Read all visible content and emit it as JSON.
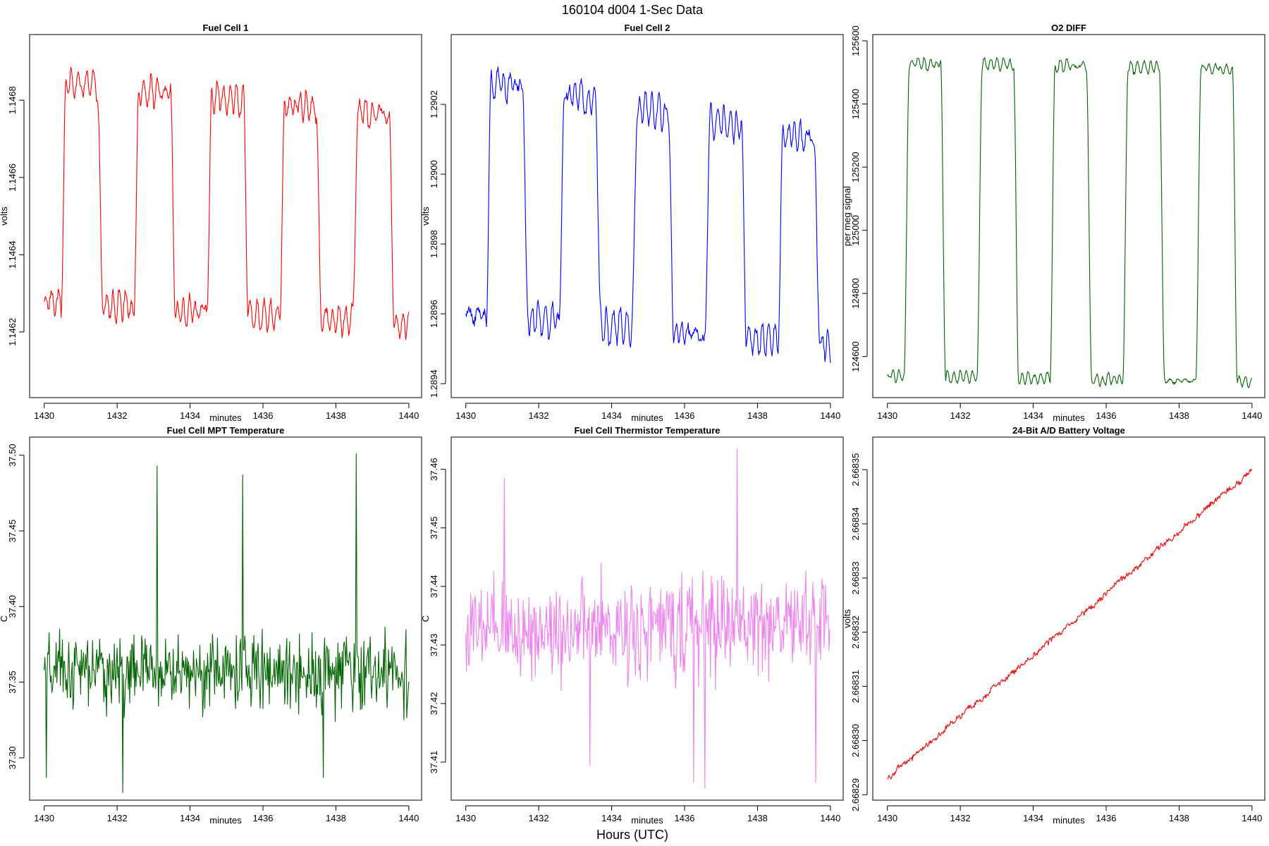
{
  "page": {
    "title": "160104   d004   1-Sec Data",
    "xlabel_global": "Hours (UTC)"
  },
  "chart_data": [
    {
      "id": "fc1",
      "type": "line",
      "title": "Fuel Cell 1",
      "xlabel": "minutes",
      "ylabel": "volts",
      "color": "#ff0000",
      "xlim": [
        1429.6,
        1440.35
      ],
      "ylim": [
        1.14603,
        1.14697
      ],
      "xticks": [
        "1430",
        "1432",
        "1434",
        "1436",
        "1438",
        "1440"
      ],
      "yticks": [
        "1.1462",
        "1.1464",
        "1.1466",
        "1.1468"
      ],
      "series": [
        {
          "kind": "square",
          "x_start": 1430.0,
          "x_end": 1440.0,
          "low": 1.14628,
          "high": 1.14685,
          "low_end": 1.14622,
          "high_end": 1.14676,
          "phase": 0.6,
          "period": 2.0,
          "noise": 2.8e-05
        }
      ]
    },
    {
      "id": "fc2",
      "type": "line",
      "title": "Fuel Cell 2",
      "xlabel": "minutes",
      "ylabel": "volts",
      "color": "#0000ff",
      "xlim": [
        1429.6,
        1440.35
      ],
      "ylim": [
        1.28936,
        1.2904
      ],
      "xticks": [
        "1430",
        "1432",
        "1434",
        "1436",
        "1438",
        "1440"
      ],
      "yticks": [
        "1.2894",
        "1.2896",
        "1.2898",
        "1.2900",
        "1.2902"
      ],
      "series": [
        {
          "kind": "square",
          "x_start": 1430.0,
          "x_end": 1440.0,
          "low": 1.2896,
          "high": 1.29028,
          "low_end": 1.28951,
          "high_end": 1.29009,
          "phase": 0.7,
          "period": 2.0,
          "noise": 3.5e-05
        }
      ]
    },
    {
      "id": "o2",
      "type": "line",
      "title": "O2 DIFF",
      "xlabel": "minutes",
      "ylabel": "per meg signal",
      "color": "#006400",
      "xlim": [
        1429.6,
        1440.35
      ],
      "ylim": [
        124470,
        125620
      ],
      "xticks": [
        "1430",
        "1432",
        "1434",
        "1436",
        "1438",
        "1440"
      ],
      "yticks": [
        "124600",
        "124800",
        "125000",
        "125200",
        "125400",
        "125600"
      ],
      "series": [
        {
          "kind": "square",
          "x_start": 1430.0,
          "x_end": 1440.0,
          "low": 124540,
          "high": 125530,
          "low_end": 124520,
          "high_end": 125510,
          "phase": 0.6,
          "period": 2.0,
          "noise": 14
        }
      ]
    },
    {
      "id": "mpt",
      "type": "line",
      "title": "Fuel Cell MPT Temperature",
      "xlabel": "minutes",
      "ylabel": "C",
      "color": "#006400",
      "xlim": [
        1429.6,
        1440.35
      ],
      "ylim": [
        37.272,
        37.512
      ],
      "xticks": [
        "1430",
        "1432",
        "1434",
        "1436",
        "1438",
        "1440"
      ],
      "yticks": [
        "37.30",
        "37.35",
        "37.40",
        "37.45",
        "37.50"
      ],
      "series": [
        {
          "kind": "noise",
          "x_start": 1430.0,
          "x_end": 1440.0,
          "mean": 37.357,
          "amp": 0.028,
          "slope": 0.0,
          "spikes": [
            [
              1430.05,
              37.287
            ],
            [
              1432.15,
              37.277
            ],
            [
              1433.1,
              37.493
            ],
            [
              1435.45,
              37.487
            ],
            [
              1437.65,
              37.287
            ],
            [
              1438.55,
              37.501
            ]
          ]
        }
      ]
    },
    {
      "id": "therm",
      "type": "line",
      "title": "Fuel Cell Thermistor Temperature",
      "xlabel": "minutes",
      "ylabel": "C",
      "color": "#ee82ee",
      "xlim": [
        1429.6,
        1440.35
      ],
      "ylim": [
        37.4035,
        37.4655
      ],
      "xticks": [
        "1430",
        "1432",
        "1434",
        "1436",
        "1438",
        "1440"
      ],
      "yticks": [
        "37.41",
        "37.42",
        "37.43",
        "37.44",
        "37.45",
        "37.46"
      ],
      "series": [
        {
          "kind": "noise",
          "x_start": 1430.0,
          "x_end": 1440.0,
          "mean": 37.432,
          "amp": 0.0095,
          "slope": 0.0002,
          "spikes": [
            [
              1431.05,
              37.4585
            ],
            [
              1433.4,
              37.4095
            ],
            [
              1436.25,
              37.4065
            ],
            [
              1436.55,
              37.4055
            ],
            [
              1437.45,
              37.4635
            ],
            [
              1439.6,
              37.4065
            ]
          ]
        }
      ]
    },
    {
      "id": "batt",
      "type": "line",
      "title": "24-Bit A/D Battery Voltage",
      "xlabel": "minutes",
      "ylabel": "volts",
      "color": "#ff0000",
      "xlim": [
        1429.6,
        1440.35
      ],
      "ylim": [
        2.668289,
        2.668356
      ],
      "xticks": [
        "1430",
        "1432",
        "1434",
        "1436",
        "1438",
        "1440"
      ],
      "yticks": [
        "2.66829",
        "2.66830",
        "2.66831",
        "2.66832",
        "2.66833",
        "2.66834",
        "2.66835"
      ],
      "series": [
        {
          "kind": "ramp",
          "x_start": 1430.0,
          "x_end": 1440.0,
          "start": 2.668293,
          "end": 2.66835,
          "noise": 9e-07
        }
      ]
    }
  ]
}
